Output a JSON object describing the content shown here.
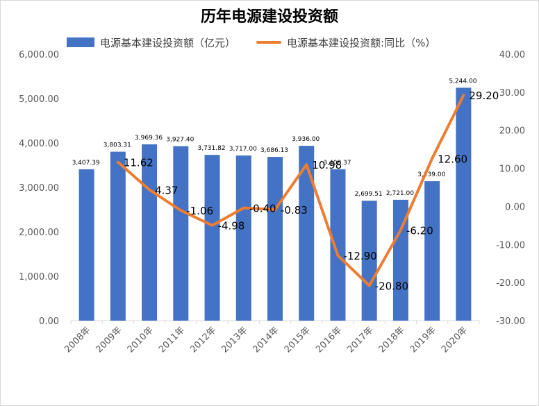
{
  "chart_data": {
    "type": "bar+line",
    "title": "历年电源建设投资额",
    "categories": [
      "2008年",
      "2009年",
      "2010年",
      "2011年",
      "2012年",
      "2013年",
      "2014年",
      "2015年",
      "2016年",
      "2017年",
      "2018年",
      "2019年",
      "2020年"
    ],
    "series": [
      {
        "name": "电源基本建设投资额（亿元）",
        "type": "bar",
        "axis": "left",
        "color": "#4472c4",
        "values": [
          3407.39,
          3803.31,
          3969.36,
          3927.4,
          3731.82,
          3717.0,
          3686.13,
          3936.0,
          3408.37,
          2699.51,
          2721.0,
          3139.0,
          5244.0
        ],
        "labels": [
          "3,407.39",
          "3,803.31",
          "3,969.36",
          "3,927.40",
          "3,731.82",
          "3,717.00",
          "3,686.13",
          "3,936.00",
          "3,408.37",
          "2,699.51",
          "2,721.00",
          "3,139.00",
          "5,244.00"
        ]
      },
      {
        "name": "电源基本建设投资额:同比（%）",
        "type": "line",
        "axis": "right",
        "color": "#ed7d31",
        "values": [
          null,
          11.62,
          4.37,
          -1.06,
          -4.98,
          -0.4,
          -0.83,
          10.98,
          -12.9,
          -20.8,
          -6.2,
          12.6,
          29.2
        ],
        "labels": [
          "",
          "11.62",
          "4.37",
          "-1.06",
          "-4.98",
          "-0.40",
          "-0.83",
          "10.98",
          "-12.90",
          "-20.80",
          "-6.20",
          "12.60",
          "29.20"
        ]
      }
    ],
    "y_left": {
      "ylim": [
        0,
        6000
      ],
      "ticks": [
        0,
        1000,
        2000,
        3000,
        4000,
        5000,
        6000
      ],
      "tick_labels": [
        "0.00",
        "1,000.00",
        "2,000.00",
        "3,000.00",
        "4,000.00",
        "5,000.00",
        "6,000.00"
      ]
    },
    "y_right": {
      "ylim": [
        -30,
        40
      ],
      "ticks": [
        -30,
        -20,
        -10,
        0,
        10,
        20,
        30,
        40
      ],
      "tick_labels": [
        "-30.00",
        "-20.00",
        "-10.00",
        "0.00",
        "10.00",
        "20.00",
        "30.00",
        "40.00"
      ]
    },
    "grid": false,
    "legend_position": "top"
  }
}
